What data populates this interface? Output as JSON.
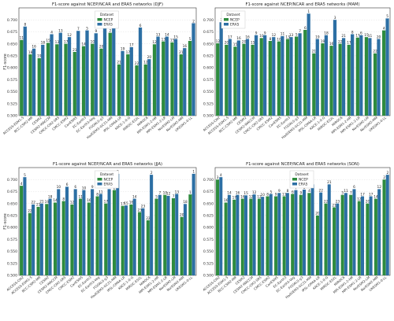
{
  "colors": {
    "ncep": "#2e8b3e",
    "era5": "#2c6fa4",
    "grid": "#d9d9d9",
    "axis": "#333333"
  },
  "chart_data": [
    {
      "type": "bar",
      "title": "F1-score against NCEP/NCAR and ERA5 networks (DJF)",
      "ylabel": "F1-score",
      "ylim": [
        0.5,
        0.725
      ],
      "yticks": [
        "0.500",
        "0.525",
        "0.550",
        "0.575",
        "0.600",
        "0.625",
        "0.650",
        "0.675",
        "0.700"
      ],
      "ytick_values": [
        0.5,
        0.525,
        0.55,
        0.575,
        0.6,
        0.625,
        0.65,
        0.675,
        0.7
      ],
      "legend": {
        "title": "Dataset",
        "placement": "top-center"
      },
      "grid": true,
      "categories": [
        "ACCESS-ESM1-5",
        "BCC-CSM2-MR",
        "CESM2",
        "CESM2-WACCM",
        "CMCC-CM2-SR5",
        "CMCC-ESM2",
        "CanESM5",
        "EC-Earth3",
        "EC-Earth3-Veg",
        "FGOALS-g3",
        "HadGEM3-GC31-MM",
        "IPSL-CM6A-LR",
        "KACE-1-0-G",
        "MIROC-ES2L",
        "MIROC6",
        "MPI-ESM1-2-HR",
        "MPI-ESM1-2-LR",
        "NorESM2-LM",
        "NorESM2-MM",
        "UKESM1-0-LL"
      ],
      "series": [
        {
          "name": "NCEP",
          "values": [
            0.658,
            0.628,
            0.62,
            0.652,
            0.649,
            0.65,
            0.633,
            0.645,
            0.65,
            0.64,
            0.673,
            0.607,
            0.628,
            0.605,
            0.607,
            0.649,
            0.655,
            0.653,
            0.628,
            0.656
          ],
          "labels": [
            "11",
            "18",
            "19",
            "15",
            "13",
            "17",
            "21",
            "14",
            "10",
            "20",
            "2",
            "21",
            "17",
            "22",
            "12",
            "12",
            "13",
            "15",
            "21",
            "5"
          ]
        },
        {
          "name": "ERA5",
          "values": [
            0.686,
            0.64,
            0.648,
            0.67,
            0.673,
            0.664,
            0.677,
            0.678,
            0.672,
            0.682,
            0.691,
            0.635,
            0.643,
            0.684,
            0.618,
            0.665,
            0.665,
            0.66,
            0.641,
            0.693
          ],
          "labels": [
            "8",
            "16",
            "18",
            "4",
            "13",
            "12",
            "7",
            "5",
            "9",
            "3",
            "1",
            "19",
            "17",
            "6",
            "20",
            "13",
            "14",
            "15",
            "16",
            "2"
          ]
        }
      ]
    },
    {
      "type": "bar",
      "title": "F1-score against NCEP/NCAR and ERA5 networks (MAM)",
      "ylabel": "",
      "ylim": [
        0.5,
        0.725
      ],
      "yticks": [
        "0.500",
        "0.525",
        "0.550",
        "0.575",
        "0.600",
        "0.625",
        "0.650",
        "0.675",
        "0.700"
      ],
      "ytick_values": [
        0.5,
        0.525,
        0.55,
        0.575,
        0.6,
        0.625,
        0.65,
        0.675,
        0.7
      ],
      "legend": {
        "title": "Dataset",
        "placement": "top-left"
      },
      "grid": true,
      "categories": [
        "ACCESS-CM2",
        "ACCESS-ESM1-5",
        "BCC-CSM2-MR",
        "CESM2",
        "CESM2-WACCM",
        "CMCC-CM2-SR5",
        "CMCC-ESM2",
        "CanESM5",
        "EC-Earth3",
        "FGOALS-g3",
        "HadGEM3-GC31-MM",
        "IPSL-CM6A-LR",
        "KACE-1-0-G",
        "MIROC-ES2L",
        "MIROC6",
        "MPI-ESM1-2-HR",
        "MPI-ESM1-2-LR",
        "NorESM2-LM",
        "NorESM2-MM",
        "UKESM1-0-LL"
      ],
      "series": [
        {
          "name": "NCEP",
          "values": [
            0.651,
            0.648,
            0.644,
            0.65,
            0.648,
            0.662,
            0.656,
            0.655,
            0.66,
            0.665,
            0.679,
            0.63,
            0.651,
            0.646,
            0.65,
            0.648,
            0.663,
            0.664,
            0.63,
            0.678
          ],
          "labels": [
            "12",
            "20",
            "15",
            "20",
            "15",
            "10",
            "8",
            "10",
            "13",
            "5",
            "6",
            "21",
            "19",
            "16",
            "22",
            "17",
            "17",
            "15",
            "22",
            "4"
          ]
        },
        {
          "name": "ERA5",
          "values": [
            0.695,
            0.66,
            0.657,
            0.66,
            0.668,
            0.668,
            0.664,
            0.666,
            0.664,
            0.672,
            0.713,
            0.66,
            0.668,
            0.7,
            0.662,
            0.67,
            0.668,
            0.662,
            0.66,
            0.703
          ],
          "labels": [
            "7",
            "17",
            "16",
            "16",
            "9",
            "9",
            "12",
            "11",
            "13",
            "7",
            "1",
            "19",
            "18",
            "3",
            "21",
            "8",
            "6",
            "11",
            "20",
            "5"
          ]
        }
      ]
    },
    {
      "type": "bar",
      "title": "F1-score against NCEP/NCAR and ERA5 networks (JJA)",
      "ylabel": "F1-score",
      "ylim": [
        0.5,
        0.725
      ],
      "yticks": [
        "0.500",
        "0.525",
        "0.550",
        "0.575",
        "0.600",
        "0.625",
        "0.650",
        "0.675",
        "0.700"
      ],
      "ytick_values": [
        0.5,
        0.525,
        0.55,
        0.575,
        0.6,
        0.625,
        0.65,
        0.675,
        0.7
      ],
      "legend": {
        "title": "Dataset",
        "placement": "top-center"
      },
      "grid": true,
      "categories": [
        "ACCESS-CM2",
        "ACCESS-ESM1-5",
        "BCC-CSM2-MR",
        "CESM2",
        "CESM2-WACCM",
        "CMCC-CM2-SR5",
        "CMCC-ESM2",
        "CanESM5",
        "EC-Earth3",
        "EC-Earth3-Veg",
        "FGOALS-g3",
        "HadGEM3-GC31-MM",
        "IPSL-CM6A-LR",
        "KACE-1-0-G",
        "MIROC-ES2L",
        "MIROC6",
        "MPI-ESM1-2-HR",
        "MPI-ESM1-2-LR",
        "NorESM2-LM",
        "NorESM2-MM",
        "UKESM1-0-LL"
      ],
      "series": [
        {
          "name": "NCEP",
          "values": [
            0.687,
            0.63,
            0.643,
            0.649,
            0.652,
            0.655,
            0.648,
            0.66,
            0.652,
            0.665,
            0.65,
            0.678,
            0.645,
            0.648,
            0.632,
            0.615,
            0.66,
            0.668,
            0.661,
            0.622,
            0.669
          ],
          "labels": [
            "4",
            "22",
            "21",
            "19",
            "14",
            "8",
            "12",
            "11",
            "16",
            "8",
            "17",
            "2",
            "17",
            "16",
            "23",
            "22",
            "5",
            "10",
            "7",
            "20",
            "1"
          ]
        },
        {
          "name": "ERA5",
          "values": [
            0.705,
            0.648,
            0.65,
            0.66,
            0.68,
            0.685,
            0.68,
            0.678,
            0.68,
            0.67,
            0.68,
            0.712,
            0.646,
            0.66,
            0.64,
            0.71,
            0.668,
            0.666,
            0.67,
            0.649,
            0.712
          ],
          "labels": [
            "5",
            "22",
            "21",
            "18",
            "10",
            "6",
            "6",
            "10",
            "9",
            "11",
            "15",
            "3",
            "15",
            "14",
            "23",
            "2",
            "7",
            "12",
            "13",
            "18",
            "1"
          ]
        }
      ]
    },
    {
      "type": "bar",
      "title": "F1-score against NCEP/NCAR and ERA5 networks (SON)",
      "ylabel": "",
      "ylim": [
        0.5,
        0.725
      ],
      "yticks": [
        "0.500",
        "0.525",
        "0.550",
        "0.575",
        "0.600",
        "0.625",
        "0.650",
        "0.675",
        "0.700"
      ],
      "ytick_values": [
        0.5,
        0.525,
        0.55,
        0.575,
        0.6,
        0.625,
        0.65,
        0.675,
        0.7
      ],
      "legend": {
        "title": "Dataset",
        "placement": "top-center"
      },
      "grid": true,
      "categories": [
        "ACCESS-CM2",
        "ACCESS-ESM1-5",
        "BCC-CSM2-MR",
        "CESM2",
        "CESM2-WACCM",
        "CMCC-CM2-SR5",
        "CMCC-ESM2",
        "CanESM5",
        "EC-Earth3",
        "EC-Earth3-Veg",
        "FGOALS-g3",
        "HadGEM3-GC31-MM",
        "IPSL-CM6A-LR",
        "KACE-1-0-G",
        "MIROC-ES2L",
        "MIROC6",
        "MPI-ESM1-2-HR",
        "MPI-ESM1-2-LR",
        "NorESM2-LM",
        "NorESM2-MM",
        "UKESM1-0-LL"
      ],
      "series": [
        {
          "name": "NCEP",
          "values": [
            0.7,
            0.652,
            0.658,
            0.66,
            0.66,
            0.66,
            0.665,
            0.665,
            0.665,
            0.67,
            0.668,
            0.672,
            0.625,
            0.65,
            0.642,
            0.668,
            0.668,
            0.655,
            0.65,
            0.66,
            0.7
          ],
          "labels": [
            "3",
            "16",
            "17",
            "16",
            "12",
            "12",
            "8",
            "9",
            "11",
            "6",
            "9",
            "4",
            "20",
            "22",
            "21",
            "5",
            "7",
            "12",
            "20",
            "14",
            "2"
          ]
        },
        {
          "name": "ERA5",
          "values": [
            0.705,
            0.668,
            0.668,
            0.667,
            0.669,
            0.664,
            0.67,
            0.672,
            0.672,
            0.678,
            0.679,
            0.69,
            0.673,
            0.69,
            0.65,
            0.672,
            0.68,
            0.665,
            0.665,
            0.68,
            0.71
          ],
          "labels": [
            "4",
            "14",
            "16",
            "15",
            "12",
            "10",
            "5",
            "9",
            "8",
            "7",
            "8",
            "4",
            "22",
            "21",
            "23",
            "11",
            "6",
            "17",
            "17",
            "12",
            "2"
          ]
        }
      ]
    }
  ]
}
